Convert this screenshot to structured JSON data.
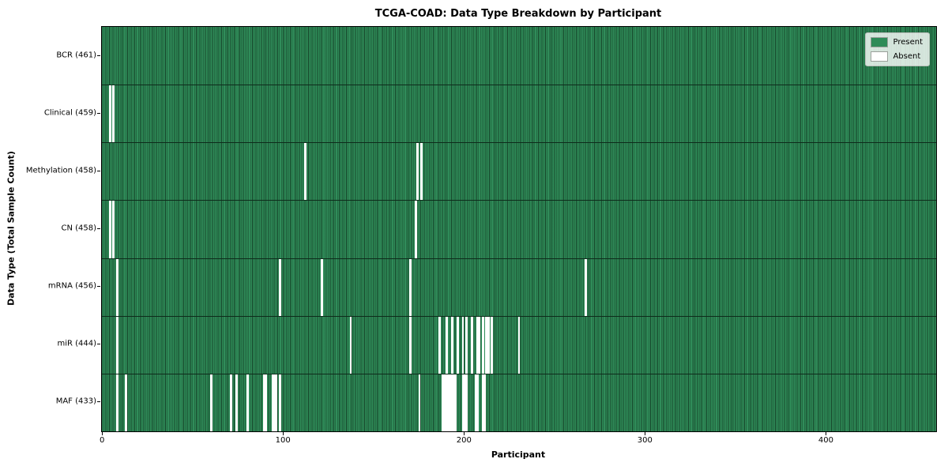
{
  "chart_data": {
    "type": "heatmap",
    "title": "TCGA-COAD: Data Type Breakdown by Participant",
    "xlabel": "Participant",
    "ylabel": "Data Type (Total Sample Count)",
    "n_participants": 461,
    "xlim": [
      -0.5,
      460.5
    ],
    "x_ticks": [
      0,
      100,
      200,
      300,
      400
    ],
    "grid": false,
    "legend_position": "upper right",
    "legend": [
      {
        "label": "Present",
        "color": "#2e8b57"
      },
      {
        "label": "Absent",
        "color": "#ffffff"
      }
    ],
    "colors": {
      "present": "#2e8b57",
      "present_edge": "#16452a",
      "absent": "#ffffff",
      "row_separator": "#0e2b1b",
      "axes_border": "#000000"
    },
    "rows": [
      {
        "data_type": "BCR",
        "label": "BCR (461)",
        "present_count": 461,
        "absent_participants": []
      },
      {
        "data_type": "Clinical",
        "label": "Clinical (459)",
        "present_count": 459,
        "absent_participants": [
          4,
          6
        ]
      },
      {
        "data_type": "Methylation",
        "label": "Methylation (458)",
        "present_count": 458,
        "absent_participants": [
          112,
          174,
          176
        ]
      },
      {
        "data_type": "CN",
        "label": "CN (458)",
        "present_count": 458,
        "absent_participants": [
          4,
          6,
          173
        ]
      },
      {
        "data_type": "mRNA",
        "label": "mRNA (456)",
        "present_count": 456,
        "absent_participants": [
          8,
          98,
          121,
          170,
          267
        ]
      },
      {
        "data_type": "miR",
        "label": "miR (444)",
        "present_count": 444,
        "absent_participants": [
          8,
          137,
          170,
          186,
          190,
          193,
          196,
          199,
          201,
          204,
          207,
          208,
          210,
          212,
          213,
          215,
          230
        ]
      },
      {
        "data_type": "MAF",
        "label": "MAF (433)",
        "present_count": 433,
        "absent_participants": [
          8,
          13,
          60,
          71,
          74,
          80,
          89,
          90,
          94,
          95,
          96,
          98,
          175,
          188,
          189,
          190,
          191,
          192,
          193,
          194,
          195,
          199,
          200,
          201,
          206,
          207,
          210,
          211
        ]
      }
    ]
  }
}
